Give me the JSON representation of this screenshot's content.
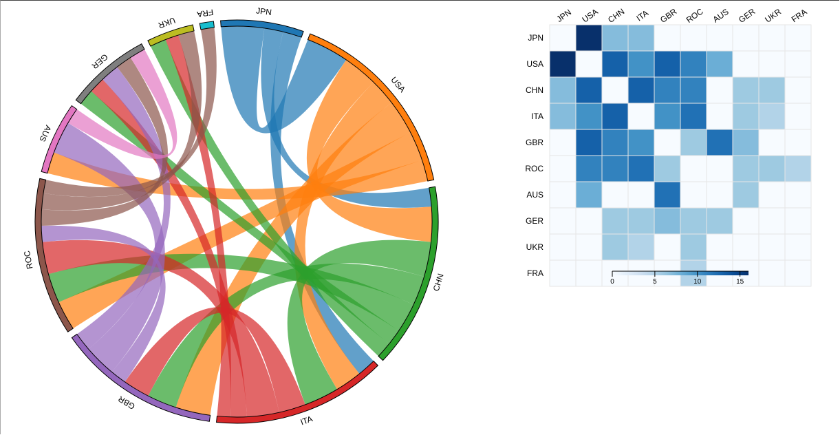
{
  "chart_data": [
    {
      "type": "chord",
      "groups": [
        {
          "name": "JPN",
          "color": "#1f77b4"
        },
        {
          "name": "USA",
          "color": "#ff7f0e"
        },
        {
          "name": "CHN",
          "color": "#2ca02c"
        },
        {
          "name": "ITA",
          "color": "#d62728"
        },
        {
          "name": "GBR",
          "color": "#9467bd"
        },
        {
          "name": "ROC",
          "color": "#8c564b"
        },
        {
          "name": "AUS",
          "color": "#e377c2"
        },
        {
          "name": "GER",
          "color": "#7f7f7f"
        },
        {
          "name": "UKR",
          "color": "#bcbd22"
        },
        {
          "name": "FRA",
          "color": "#17becf"
        }
      ],
      "matrix": [
        [
          0,
          16,
          7,
          7,
          0,
          0,
          0,
          0,
          0,
          0
        ],
        [
          16,
          0,
          13,
          10,
          13,
          11,
          8,
          0,
          0,
          0
        ],
        [
          7,
          13,
          0,
          13,
          11,
          11,
          0,
          6,
          6,
          0
        ],
        [
          7,
          10,
          13,
          0,
          10,
          12,
          0,
          6,
          5,
          0
        ],
        [
          0,
          13,
          11,
          10,
          0,
          6,
          12,
          7,
          0,
          0
        ],
        [
          0,
          11,
          11,
          12,
          6,
          0,
          0,
          6,
          6,
          5
        ],
        [
          0,
          8,
          0,
          0,
          12,
          0,
          0,
          6,
          0,
          0
        ],
        [
          0,
          0,
          6,
          6,
          7,
          6,
          6,
          0,
          0,
          0
        ],
        [
          0,
          0,
          6,
          5,
          0,
          6,
          0,
          0,
          0,
          0
        ],
        [
          0,
          0,
          0,
          0,
          0,
          5,
          0,
          0,
          0,
          0
        ]
      ]
    },
    {
      "type": "heatmap",
      "rows": [
        "JPN",
        "USA",
        "CHN",
        "ITA",
        "GBR",
        "ROC",
        "AUS",
        "GER",
        "UKR",
        "FRA"
      ],
      "columns": [
        "JPN",
        "USA",
        "CHN",
        "ITA",
        "GBR",
        "ROC",
        "AUS",
        "GER",
        "UKR",
        "FRA"
      ],
      "values": [
        [
          0,
          16,
          7,
          7,
          0,
          0,
          0,
          0,
          0,
          0
        ],
        [
          16,
          0,
          13,
          10,
          13,
          11,
          8,
          0,
          0,
          0
        ],
        [
          7,
          13,
          0,
          13,
          11,
          11,
          0,
          6,
          6,
          0
        ],
        [
          7,
          10,
          13,
          0,
          10,
          12,
          0,
          6,
          5,
          0
        ],
        [
          0,
          13,
          11,
          10,
          0,
          6,
          12,
          7,
          0,
          0
        ],
        [
          0,
          11,
          11,
          12,
          6,
          0,
          0,
          6,
          6,
          5
        ],
        [
          0,
          8,
          0,
          0,
          12,
          0,
          0,
          6,
          0,
          0
        ],
        [
          0,
          0,
          6,
          6,
          7,
          6,
          6,
          0,
          0,
          0
        ],
        [
          0,
          0,
          6,
          5,
          0,
          6,
          0,
          0,
          0,
          0
        ],
        [
          0,
          0,
          0,
          0,
          0,
          5,
          0,
          0,
          0,
          0
        ]
      ],
      "color_scale": {
        "min": 0,
        "max": 16,
        "low_color": "#f7fbff",
        "high_color": "#08306b"
      },
      "legend": {
        "ticks": [
          0,
          5,
          10,
          15
        ],
        "placement": "bottom-left"
      }
    }
  ]
}
